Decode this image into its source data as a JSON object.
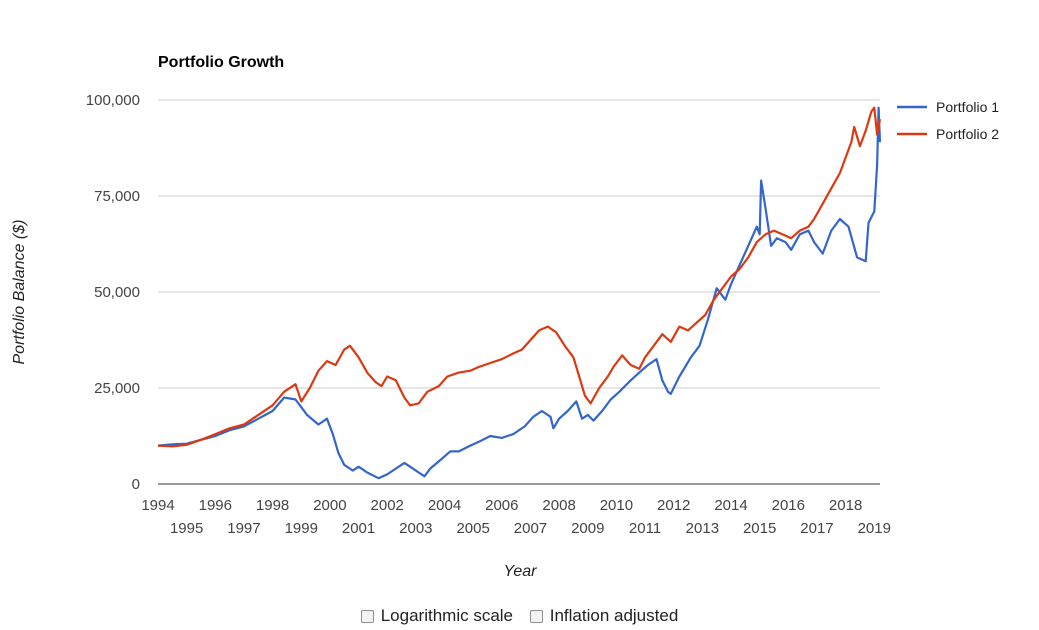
{
  "chart_data": {
    "type": "line",
    "title": "Portfolio Growth",
    "xlabel": "Year",
    "ylabel": "Portfolio Balance ($)",
    "ylim": [
      0,
      100000
    ],
    "xlim": [
      1994,
      2019.2
    ],
    "y_ticks": [
      "0",
      "25,000",
      "50,000",
      "75,000",
      "100,000"
    ],
    "x_ticks_upper": [
      "1994",
      "1996",
      "1998",
      "2000",
      "2002",
      "2004",
      "2006",
      "2008",
      "2010",
      "2012",
      "2014",
      "2016",
      "2018"
    ],
    "x_ticks_lower": [
      "1995",
      "1997",
      "1999",
      "2001",
      "2003",
      "2005",
      "2007",
      "2009",
      "2011",
      "2013",
      "2015",
      "2017",
      "2019"
    ],
    "grid": true,
    "legend_position": "top-right",
    "series": [
      {
        "name": "Portfolio 1",
        "color": "#3366cc",
        "points": [
          [
            1994.0,
            10000
          ],
          [
            1994.5,
            10300
          ],
          [
            1995.0,
            10500
          ],
          [
            1995.5,
            11500
          ],
          [
            1996.0,
            12500
          ],
          [
            1996.5,
            14000
          ],
          [
            1997.0,
            15000
          ],
          [
            1997.5,
            17000
          ],
          [
            1998.0,
            19000
          ],
          [
            1998.4,
            22500
          ],
          [
            1998.8,
            22000
          ],
          [
            1999.0,
            20000
          ],
          [
            1999.2,
            18000
          ],
          [
            1999.6,
            15500
          ],
          [
            1999.9,
            17000
          ],
          [
            2000.1,
            13000
          ],
          [
            2000.3,
            8000
          ],
          [
            2000.5,
            5000
          ],
          [
            2000.8,
            3500
          ],
          [
            2001.0,
            4500
          ],
          [
            2001.3,
            3000
          ],
          [
            2001.7,
            1500
          ],
          [
            2002.0,
            2500
          ],
          [
            2002.3,
            4000
          ],
          [
            2002.6,
            5500
          ],
          [
            2002.8,
            4500
          ],
          [
            2003.1,
            3000
          ],
          [
            2003.3,
            2000
          ],
          [
            2003.5,
            4000
          ],
          [
            2003.9,
            6500
          ],
          [
            2004.2,
            8500
          ],
          [
            2004.5,
            8500
          ],
          [
            2004.9,
            10000
          ],
          [
            2005.2,
            11000
          ],
          [
            2005.6,
            12500
          ],
          [
            2006.0,
            12000
          ],
          [
            2006.4,
            13000
          ],
          [
            2006.8,
            15000
          ],
          [
            2007.1,
            17500
          ],
          [
            2007.4,
            19000
          ],
          [
            2007.7,
            17500
          ],
          [
            2007.8,
            14500
          ],
          [
            2008.0,
            17000
          ],
          [
            2008.3,
            19000
          ],
          [
            2008.6,
            21500
          ],
          [
            2008.8,
            17000
          ],
          [
            2009.0,
            18000
          ],
          [
            2009.2,
            16500
          ],
          [
            2009.5,
            19000
          ],
          [
            2009.8,
            22000
          ],
          [
            2010.1,
            24000
          ],
          [
            2010.5,
            27000
          ],
          [
            2010.8,
            29000
          ],
          [
            2011.1,
            31000
          ],
          [
            2011.4,
            32500
          ],
          [
            2011.6,
            27000
          ],
          [
            2011.8,
            24000
          ],
          [
            2011.9,
            23500
          ],
          [
            2012.2,
            28000
          ],
          [
            2012.6,
            33000
          ],
          [
            2012.9,
            36000
          ],
          [
            2013.2,
            43000
          ],
          [
            2013.5,
            51000
          ],
          [
            2013.8,
            48000
          ],
          [
            2014.0,
            52000
          ],
          [
            2014.3,
            57000
          ],
          [
            2014.6,
            62000
          ],
          [
            2014.9,
            67000
          ],
          [
            2015.0,
            65000
          ],
          [
            2015.05,
            79000
          ],
          [
            2015.2,
            72000
          ],
          [
            2015.4,
            62000
          ],
          [
            2015.6,
            64000
          ],
          [
            2015.9,
            63000
          ],
          [
            2016.1,
            61000
          ],
          [
            2016.4,
            65000
          ],
          [
            2016.7,
            66000
          ],
          [
            2016.9,
            63000
          ],
          [
            2017.2,
            60000
          ],
          [
            2017.5,
            66000
          ],
          [
            2017.8,
            69000
          ],
          [
            2018.1,
            67000
          ],
          [
            2018.4,
            59000
          ],
          [
            2018.7,
            58000
          ],
          [
            2018.8,
            68000
          ],
          [
            2019.0,
            71000
          ],
          [
            2019.1,
            83000
          ],
          [
            2019.15,
            98000
          ],
          [
            2019.2,
            89000
          ]
        ]
      },
      {
        "name": "Portfolio 2",
        "color": "#dc3912",
        "points": [
          [
            1994.0,
            10000
          ],
          [
            1994.5,
            9800
          ],
          [
            1995.0,
            10200
          ],
          [
            1995.5,
            11500
          ],
          [
            1996.0,
            13000
          ],
          [
            1996.5,
            14500
          ],
          [
            1997.0,
            15500
          ],
          [
            1997.5,
            18000
          ],
          [
            1998.0,
            20500
          ],
          [
            1998.4,
            24000
          ],
          [
            1998.8,
            26000
          ],
          [
            1999.0,
            21500
          ],
          [
            1999.3,
            25000
          ],
          [
            1999.6,
            29500
          ],
          [
            1999.9,
            32000
          ],
          [
            2000.2,
            31000
          ],
          [
            2000.5,
            35000
          ],
          [
            2000.7,
            36000
          ],
          [
            2001.0,
            33000
          ],
          [
            2001.3,
            29000
          ],
          [
            2001.6,
            26500
          ],
          [
            2001.8,
            25500
          ],
          [
            2002.0,
            28000
          ],
          [
            2002.3,
            27000
          ],
          [
            2002.6,
            22500
          ],
          [
            2002.8,
            20500
          ],
          [
            2003.1,
            21000
          ],
          [
            2003.4,
            24000
          ],
          [
            2003.8,
            25500
          ],
          [
            2004.1,
            28000
          ],
          [
            2004.5,
            29000
          ],
          [
            2004.9,
            29500
          ],
          [
            2005.2,
            30500
          ],
          [
            2005.6,
            31500
          ],
          [
            2006.0,
            32500
          ],
          [
            2006.4,
            34000
          ],
          [
            2006.7,
            35000
          ],
          [
            2007.0,
            37500
          ],
          [
            2007.3,
            40000
          ],
          [
            2007.6,
            41000
          ],
          [
            2007.9,
            39500
          ],
          [
            2008.2,
            36000
          ],
          [
            2008.5,
            33000
          ],
          [
            2008.7,
            28000
          ],
          [
            2008.9,
            23000
          ],
          [
            2009.1,
            21000
          ],
          [
            2009.4,
            25000
          ],
          [
            2009.7,
            28000
          ],
          [
            2009.9,
            30500
          ],
          [
            2010.2,
            33500
          ],
          [
            2010.5,
            31000
          ],
          [
            2010.8,
            30000
          ],
          [
            2011.0,
            33000
          ],
          [
            2011.3,
            36000
          ],
          [
            2011.6,
            39000
          ],
          [
            2011.9,
            37000
          ],
          [
            2012.2,
            41000
          ],
          [
            2012.5,
            40000
          ],
          [
            2012.8,
            42000
          ],
          [
            2013.1,
            44000
          ],
          [
            2013.4,
            48000
          ],
          [
            2013.7,
            51000
          ],
          [
            2014.0,
            54000
          ],
          [
            2014.3,
            56000
          ],
          [
            2014.6,
            59000
          ],
          [
            2014.9,
            63000
          ],
          [
            2015.2,
            65000
          ],
          [
            2015.5,
            66000
          ],
          [
            2015.8,
            65000
          ],
          [
            2016.1,
            64000
          ],
          [
            2016.4,
            66000
          ],
          [
            2016.7,
            67000
          ],
          [
            2016.9,
            69000
          ],
          [
            2017.2,
            73000
          ],
          [
            2017.5,
            77000
          ],
          [
            2017.8,
            81000
          ],
          [
            2018.0,
            85000
          ],
          [
            2018.2,
            89000
          ],
          [
            2018.3,
            93000
          ],
          [
            2018.5,
            88000
          ],
          [
            2018.7,
            92000
          ],
          [
            2018.9,
            97000
          ],
          [
            2019.0,
            98000
          ],
          [
            2019.1,
            91000
          ],
          [
            2019.2,
            95000
          ]
        ]
      }
    ]
  },
  "controls": {
    "log_scale_label": "Logarithmic scale",
    "inflation_label": "Inflation adjusted"
  }
}
